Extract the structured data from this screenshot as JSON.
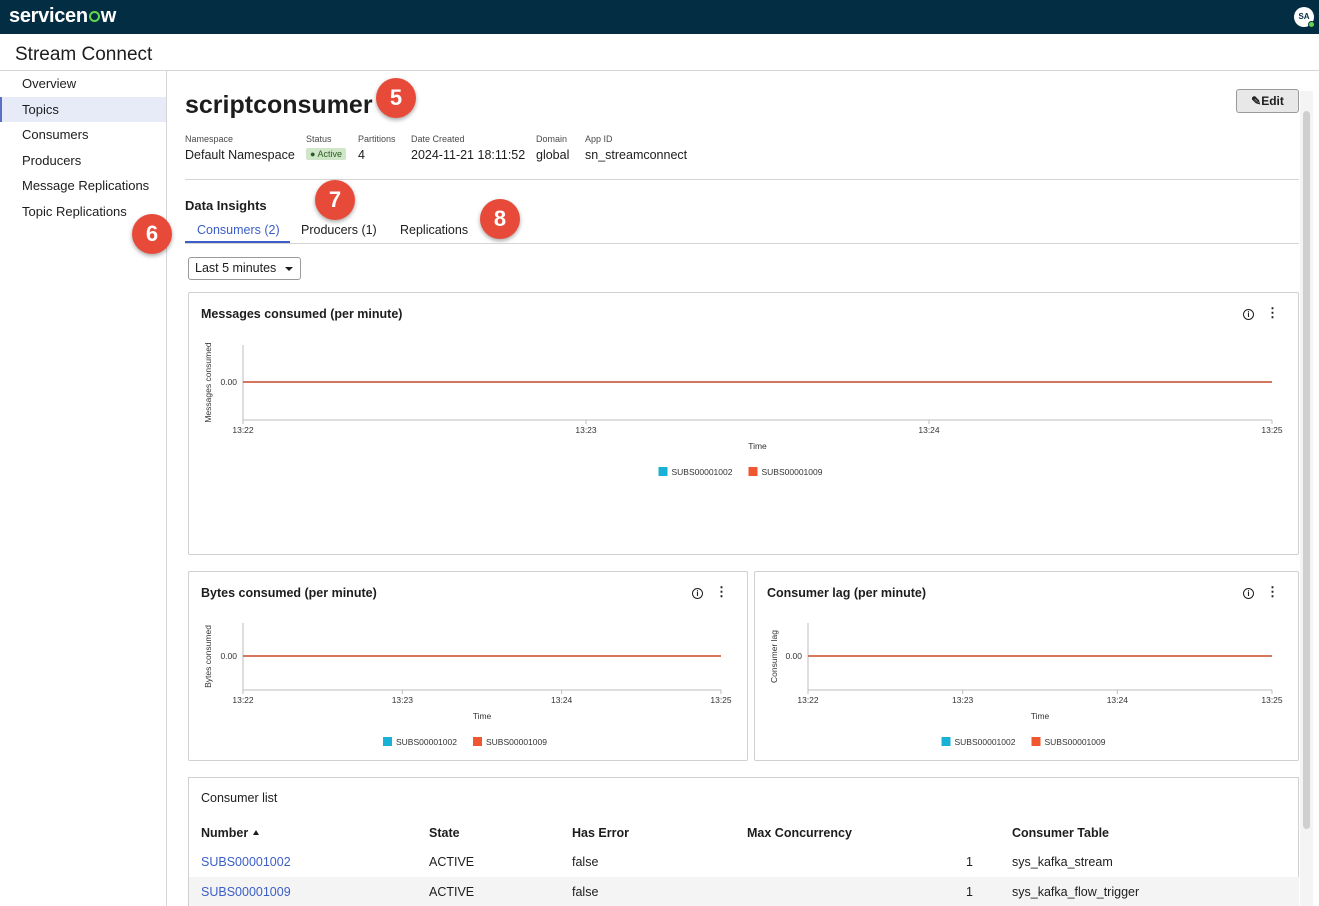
{
  "header": {
    "logo_prefix": "servicen",
    "logo_suffix": "w",
    "avatar_initials": "SA"
  },
  "app_title": "Stream Connect",
  "sidebar": {
    "items": [
      {
        "label": "Overview",
        "active": false
      },
      {
        "label": "Topics",
        "active": true
      },
      {
        "label": "Consumers",
        "active": false
      },
      {
        "label": "Producers",
        "active": false
      },
      {
        "label": "Message Replications",
        "active": false
      },
      {
        "label": "Topic Replications",
        "active": false
      }
    ]
  },
  "record": {
    "title": "scriptconsumer",
    "edit_label": "Edit",
    "meta": {
      "namespace_label": "Namespace",
      "namespace_value": "Default Namespace",
      "status_label": "Status",
      "status_value": "Active",
      "partitions_label": "Partitions",
      "partitions_value": "4",
      "date_label": "Date Created",
      "date_value": "2024-11-21 18:11:52",
      "domain_label": "Domain",
      "domain_value": "global",
      "appid_label": "App ID",
      "appid_value": "sn_streamconnect"
    }
  },
  "annotations": {
    "b5": "5",
    "b6": "6",
    "b7": "7",
    "b8": "8"
  },
  "insights": {
    "title": "Data Insights",
    "tabs": [
      {
        "label": "Consumers (2)",
        "active": true
      },
      {
        "label": "Producers (1)",
        "active": false
      },
      {
        "label": "Replications",
        "active": false
      }
    ],
    "range_select": "Last 5 minutes"
  },
  "colors": {
    "accent": "#3b5ec8",
    "series1": "#1ab1d6",
    "series2": "#f0562f",
    "header": "#032d42"
  },
  "chart_data": [
    {
      "type": "line",
      "title": "Messages consumed (per minute)",
      "xlabel": "Time",
      "ylabel": "Messages consumed",
      "x": [
        "13:22",
        "13:23",
        "13:24",
        "13:25"
      ],
      "yticks": [
        "0.00"
      ],
      "series": [
        {
          "name": "SUBS00001002",
          "values": [
            0,
            0,
            0,
            0
          ]
        },
        {
          "name": "SUBS00001009",
          "values": [
            0,
            0,
            0,
            0
          ]
        }
      ]
    },
    {
      "type": "line",
      "title": "Bytes consumed (per minute)",
      "xlabel": "Time",
      "ylabel": "Bytes consumed",
      "x": [
        "13:22",
        "13:23",
        "13:24",
        "13:25"
      ],
      "yticks": [
        "0.00"
      ],
      "series": [
        {
          "name": "SUBS00001002",
          "values": [
            0,
            0,
            0,
            0
          ]
        },
        {
          "name": "SUBS00001009",
          "values": [
            0,
            0,
            0,
            0
          ]
        }
      ]
    },
    {
      "type": "line",
      "title": "Consumer lag (per minute)",
      "xlabel": "Time",
      "ylabel": "Consumer lag",
      "x": [
        "13:22",
        "13:23",
        "13:24",
        "13:25"
      ],
      "yticks": [
        "0.00"
      ],
      "series": [
        {
          "name": "SUBS00001002",
          "values": [
            0,
            0,
            0,
            0
          ]
        },
        {
          "name": "SUBS00001009",
          "values": [
            0,
            0,
            0,
            0
          ]
        }
      ]
    }
  ],
  "consumer_list": {
    "title": "Consumer list",
    "columns": [
      "Number",
      "State",
      "Has Error",
      "Max Concurrency",
      "Consumer Table"
    ],
    "rows": [
      {
        "number": "SUBS00001002",
        "state": "ACTIVE",
        "has_error": "false",
        "max_concurrency": "1",
        "table": "sys_kafka_stream"
      },
      {
        "number": "SUBS00001009",
        "state": "ACTIVE",
        "has_error": "false",
        "max_concurrency": "1",
        "table": "sys_kafka_flow_trigger"
      }
    ]
  }
}
